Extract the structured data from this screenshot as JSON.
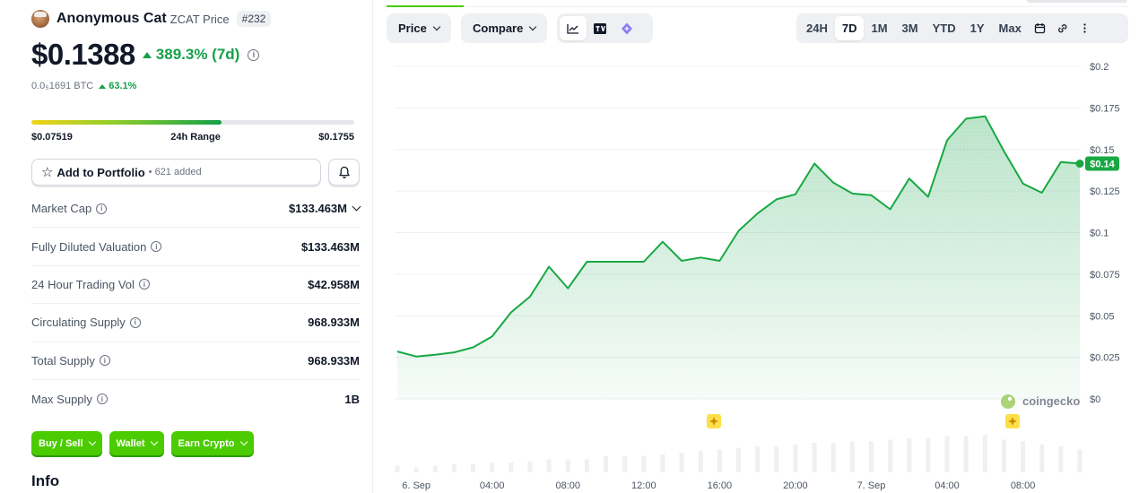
{
  "coin": {
    "name": "Anonymous Cat",
    "symbol_label": "ZCAT Price",
    "rank": "#232",
    "price": "$0.1388",
    "change_7d": "389.3% (7d)",
    "btc_price": "0.0₅1691 BTC",
    "btc_change": "63.1%"
  },
  "range": {
    "low": "$0.07519",
    "label": "24h Range",
    "high": "$0.1755",
    "position": 0.59
  },
  "portfolio": {
    "button_label": "Add to Portfolio",
    "added": "• 621 added"
  },
  "stats": [
    {
      "label": "Market Cap",
      "value": "$133.463M"
    },
    {
      "label": "Fully Diluted Valuation",
      "value": "$133.463M"
    },
    {
      "label": "24 Hour Trading Vol",
      "value": "$42.958M"
    },
    {
      "label": "Circulating Supply",
      "value": "968.933M"
    },
    {
      "label": "Total Supply",
      "value": "968.933M"
    },
    {
      "label": "Max Supply",
      "value": "1B"
    }
  ],
  "actions": [
    "Buy / Sell",
    "Wallet",
    "Earn Crypto"
  ],
  "info_heading": "Info",
  "toolbar": {
    "price_label": "Price",
    "compare_label": "Compare",
    "ranges": [
      "24H",
      "7D",
      "1M",
      "3M",
      "YTD",
      "1Y",
      "Max"
    ],
    "active_range": "7D"
  },
  "colors": {
    "up": "#15a04a",
    "line": "#18a843",
    "button": "#4bcc00"
  },
  "chart_data": {
    "type": "area",
    "current_label": "$0.14",
    "watermark": "coingecko",
    "x_ticks": [
      "6. Sep",
      "04:00",
      "08:00",
      "12:00",
      "16:00",
      "20:00",
      "7. Sep",
      "04:00",
      "08:00"
    ],
    "y_ticks": [
      "$0.2",
      "$0.175",
      "$0.15",
      "$0.125",
      "$0.1",
      "$0.075",
      "$0.05",
      "$0.025",
      "$0"
    ],
    "ylim": [
      0,
      0.2
    ],
    "x": [
      "2024-09-05T23:00",
      "2024-09-06T00:00",
      "2024-09-06T01:00",
      "2024-09-06T02:00",
      "2024-09-06T03:00",
      "2024-09-06T04:00",
      "2024-09-06T05:00",
      "2024-09-06T06:00",
      "2024-09-06T07:00",
      "2024-09-06T08:00",
      "2024-09-06T09:00",
      "2024-09-06T10:00",
      "2024-09-06T11:00",
      "2024-09-06T12:00",
      "2024-09-06T13:00",
      "2024-09-06T14:00",
      "2024-09-06T15:00",
      "2024-09-06T16:00",
      "2024-09-06T17:00",
      "2024-09-06T18:00",
      "2024-09-06T19:00",
      "2024-09-06T20:00",
      "2024-09-06T21:00",
      "2024-09-06T22:00",
      "2024-09-06T23:00",
      "2024-09-07T00:00",
      "2024-09-07T01:00",
      "2024-09-07T02:00",
      "2024-09-07T03:00",
      "2024-09-07T04:00",
      "2024-09-07T05:00",
      "2024-09-07T06:00",
      "2024-09-07T07:00",
      "2024-09-07T08:00",
      "2024-09-07T09:00",
      "2024-09-07T10:00",
      "2024-09-07T11:00"
    ],
    "values": [
      0.0285,
      0.0255,
      0.0265,
      0.028,
      0.031,
      0.0375,
      0.052,
      0.0615,
      0.0795,
      0.0665,
      0.0825,
      0.0825,
      0.0825,
      0.0825,
      0.0945,
      0.083,
      0.085,
      0.083,
      0.101,
      0.1115,
      0.12,
      0.123,
      0.1415,
      0.13,
      0.1235,
      0.1225,
      0.114,
      0.1325,
      0.1215,
      0.1555,
      0.1685,
      0.17,
      0.149,
      0.1295,
      0.124,
      0.1425,
      0.1415
    ],
    "volume": [
      4,
      3,
      4,
      5,
      5,
      6,
      6,
      7,
      8,
      8,
      8,
      10,
      10,
      10,
      11,
      12,
      13,
      14,
      15,
      16,
      16,
      17,
      18,
      18,
      19,
      19,
      20,
      21,
      21,
      22,
      22,
      23,
      20,
      19,
      17,
      16,
      14
    ]
  }
}
